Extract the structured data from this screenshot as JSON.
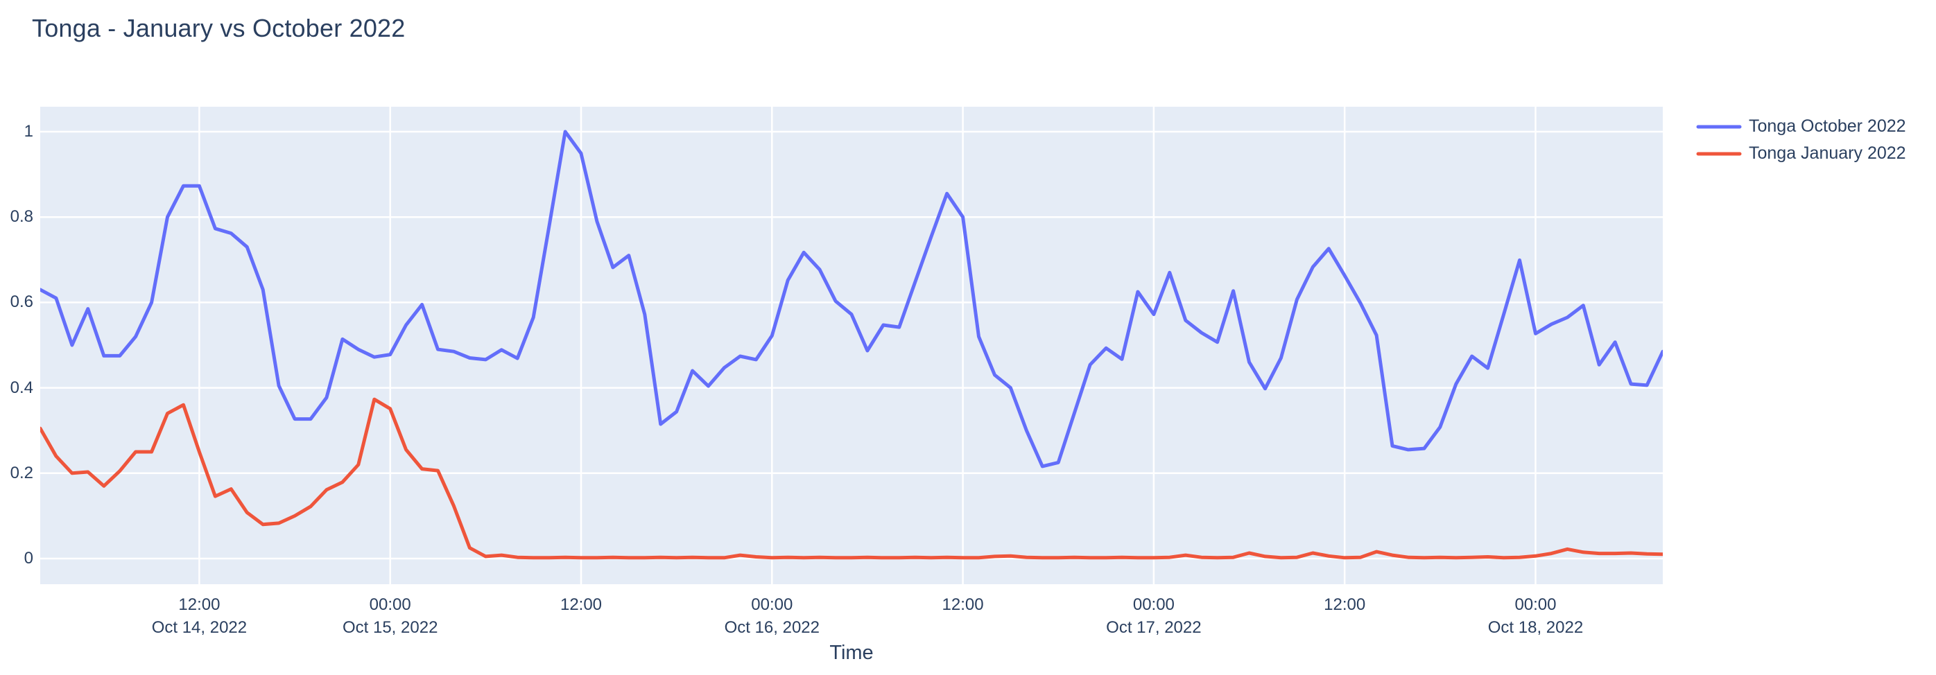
{
  "chart_data": {
    "type": "line",
    "title": "Tonga - January vs October 2022",
    "xlabel": "Time",
    "ylabel": "",
    "x_start": "2022-10-14 02:00",
    "x_end": "2022-10-18 08:00",
    "x_step": "1 hour",
    "x_start_hour": 2,
    "ylim": [
      -0.06,
      1.058
    ],
    "yticks": [
      0,
      0.2,
      0.4,
      0.6,
      0.8,
      1
    ],
    "xticks": [
      {
        "hour": 12,
        "time": "12:00",
        "date": "Oct 14, 2022"
      },
      {
        "hour": 24,
        "time": "00:00",
        "date": "Oct 15, 2022"
      },
      {
        "hour": 36,
        "time": "12:00",
        "date": ""
      },
      {
        "hour": 48,
        "time": "00:00",
        "date": "Oct 16, 2022"
      },
      {
        "hour": 60,
        "time": "12:00",
        "date": ""
      },
      {
        "hour": 72,
        "time": "00:00",
        "date": "Oct 17, 2022"
      },
      {
        "hour": 84,
        "time": "12:00",
        "date": ""
      },
      {
        "hour": 96,
        "time": "00:00",
        "date": "Oct 18, 2022"
      }
    ],
    "grid": true,
    "legend_position": "top-right-outside",
    "colors": {
      "plot_bg": "#e5ecf6",
      "grid": "#ffffff",
      "text": "#2a3f5f",
      "page_bg": "#ffffff"
    },
    "series": [
      {
        "name": "Tonga October 2022",
        "color": "#636efa",
        "values": [
          0.63,
          0.61,
          0.5,
          0.585,
          0.475,
          0.475,
          0.52,
          0.6,
          0.8,
          0.873,
          0.873,
          0.773,
          0.762,
          0.73,
          0.63,
          0.405,
          0.327,
          0.327,
          0.377,
          0.514,
          0.49,
          0.472,
          0.478,
          0.547,
          0.595,
          0.49,
          0.485,
          0.47,
          0.466,
          0.489,
          0.469,
          0.565,
          0.78,
          1.0,
          0.949,
          0.79,
          0.682,
          0.71,
          0.572,
          0.315,
          0.344,
          0.44,
          0.404,
          0.447,
          0.474,
          0.466,
          0.522,
          0.652,
          0.717,
          0.677,
          0.603,
          0.572,
          0.487,
          0.547,
          0.542,
          0.648,
          0.753,
          0.855,
          0.8,
          0.52,
          0.43,
          0.4,
          0.3,
          0.216,
          0.225,
          0.34,
          0.454,
          0.493,
          0.467,
          0.625,
          0.572,
          0.67,
          0.558,
          0.529,
          0.507,
          0.627,
          0.46,
          0.398,
          0.47,
          0.607,
          0.683,
          0.726,
          0.663,
          0.598,
          0.523,
          0.264,
          0.255,
          0.258,
          0.308,
          0.409,
          0.474,
          0.446,
          0.572,
          0.699,
          0.527,
          0.549,
          0.565,
          0.593,
          0.454,
          0.507,
          0.409,
          0.406,
          0.485
        ]
      },
      {
        "name": "Tonga January 2022",
        "color": "#ef553b",
        "values": [
          0.305,
          0.24,
          0.2,
          0.203,
          0.17,
          0.205,
          0.25,
          0.25,
          0.34,
          0.36,
          0.25,
          0.146,
          0.163,
          0.108,
          0.08,
          0.083,
          0.1,
          0.122,
          0.161,
          0.179,
          0.22,
          0.373,
          0.351,
          0.255,
          0.21,
          0.206,
          0.123,
          0.025,
          0.005,
          0.008,
          0.003,
          0.002,
          0.002,
          0.003,
          0.002,
          0.002,
          0.003,
          0.002,
          0.002,
          0.003,
          0.002,
          0.003,
          0.002,
          0.002,
          0.008,
          0.004,
          0.002,
          0.003,
          0.002,
          0.003,
          0.002,
          0.002,
          0.003,
          0.002,
          0.002,
          0.003,
          0.002,
          0.003,
          0.002,
          0.002,
          0.005,
          0.006,
          0.003,
          0.002,
          0.002,
          0.003,
          0.002,
          0.002,
          0.003,
          0.002,
          0.002,
          0.003,
          0.008,
          0.003,
          0.002,
          0.003,
          0.013,
          0.005,
          0.002,
          0.003,
          0.013,
          0.006,
          0.002,
          0.003,
          0.016,
          0.008,
          0.003,
          0.002,
          0.003,
          0.002,
          0.003,
          0.004,
          0.002,
          0.003,
          0.006,
          0.012,
          0.022,
          0.015,
          0.012,
          0.012,
          0.013,
          0.011,
          0.01
        ]
      }
    ]
  }
}
